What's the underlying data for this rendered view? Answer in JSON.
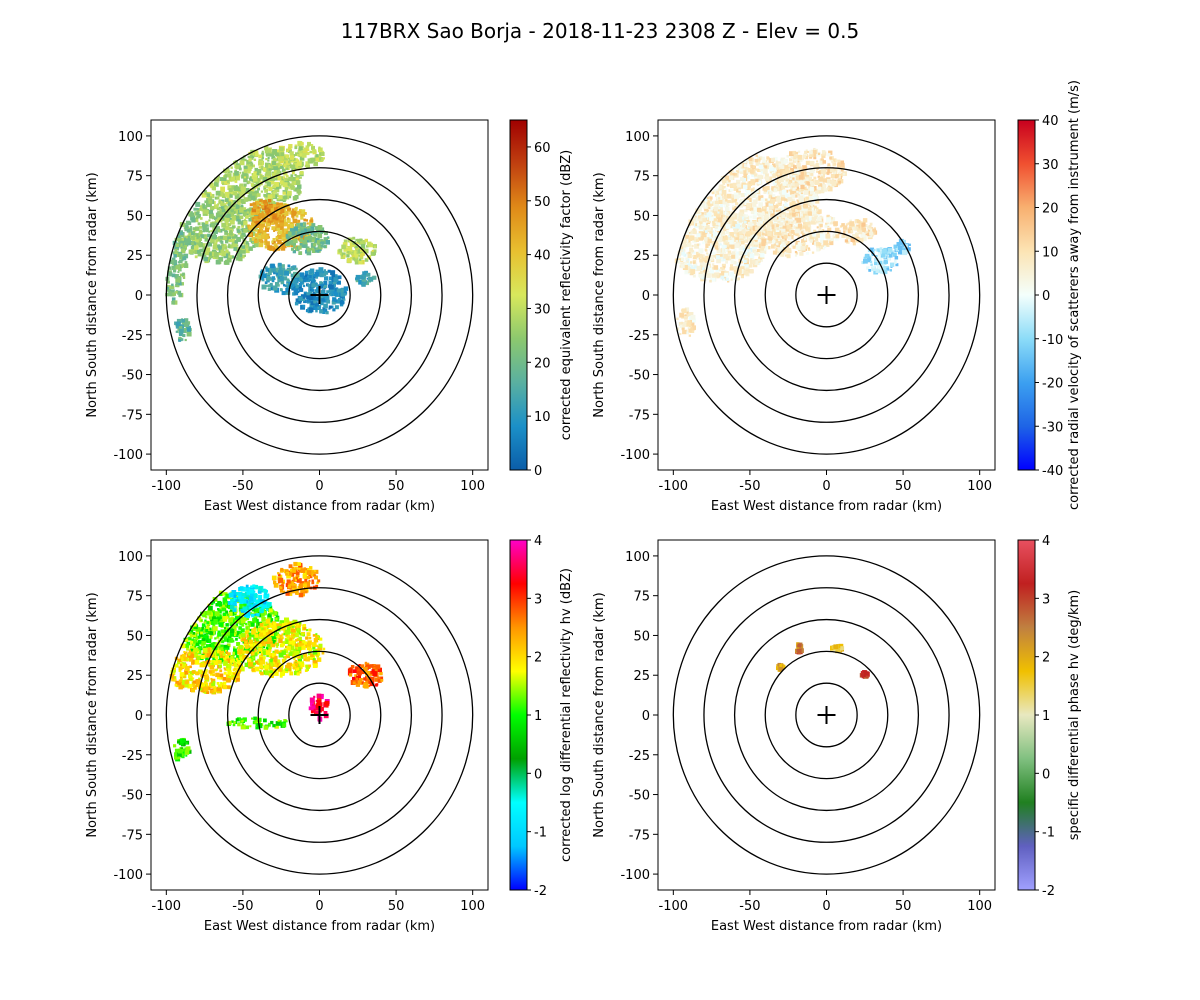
{
  "figure": {
    "title": "117BRX Sao Borja - 2018-11-23 2308 Z -  Elev = 0.5"
  },
  "chart_data": [
    {
      "type": "heatmap",
      "name": "reflectivity",
      "xlabel": "East West distance from radar (km)",
      "ylabel": "North South distance from radar (km)",
      "xlim": [
        -110,
        110
      ],
      "ylim": [
        -110,
        110
      ],
      "xticks": [
        -100,
        -50,
        0,
        50,
        100
      ],
      "yticks": [
        -100,
        -75,
        -50,
        -25,
        0,
        25,
        50,
        75,
        100
      ],
      "range_rings_km": [
        20,
        40,
        60,
        80,
        100
      ],
      "colorbar": {
        "label": "corrected equivalent reflectivity factor (dBZ)",
        "min": 0,
        "max": 65,
        "ticks": [
          0,
          10,
          20,
          30,
          40,
          50,
          60
        ],
        "colors": [
          "#0b5da8",
          "#1b90c8",
          "#5ab0a0",
          "#8cc86e",
          "#d8e85c",
          "#e8c030",
          "#e08a18",
          "#c04010",
          "#a00000"
        ]
      },
      "echoes": [
        {
          "x": -45,
          "y": 72,
          "rx": 35,
          "ry": 22,
          "value": 28
        },
        {
          "x": -65,
          "y": 40,
          "rx": 28,
          "ry": 20,
          "value": 25
        },
        {
          "x": -25,
          "y": 42,
          "rx": 22,
          "ry": 14,
          "value": 42
        },
        {
          "x": -35,
          "y": 52,
          "rx": 12,
          "ry": 8,
          "value": 46
        },
        {
          "x": -12,
          "y": 88,
          "rx": 16,
          "ry": 8,
          "value": 30
        },
        {
          "x": -8,
          "y": 35,
          "rx": 14,
          "ry": 10,
          "value": 20
        },
        {
          "x": 25,
          "y": 28,
          "rx": 12,
          "ry": 8,
          "value": 30
        },
        {
          "x": 0,
          "y": 2,
          "rx": 18,
          "ry": 14,
          "value": 8
        },
        {
          "x": -25,
          "y": 10,
          "rx": 14,
          "ry": 10,
          "value": 12
        },
        {
          "x": -90,
          "y": -22,
          "rx": 6,
          "ry": 7,
          "value": 18
        },
        {
          "x": -95,
          "y": 20,
          "rx": 8,
          "ry": 25,
          "value": 22
        },
        {
          "x": 30,
          "y": 10,
          "rx": 6,
          "ry": 4,
          "value": 14
        }
      ]
    },
    {
      "type": "heatmap",
      "name": "velocity",
      "xlabel": "East West distance from radar (km)",
      "ylabel": "North South distance from radar (km)",
      "xlim": [
        -110,
        110
      ],
      "ylim": [
        -110,
        110
      ],
      "xticks": [
        -100,
        -50,
        0,
        50,
        100
      ],
      "yticks": [
        -100,
        -75,
        -50,
        -25,
        0,
        25,
        50,
        75,
        100
      ],
      "range_rings_km": [
        20,
        40,
        60,
        80,
        100
      ],
      "colorbar": {
        "label": "corrected radial velocity of scatterers away from instrument (m/s)",
        "min": -40,
        "max": 40,
        "ticks": [
          -40,
          -30,
          -20,
          -10,
          0,
          10,
          20,
          30,
          40
        ],
        "colors": [
          "#0000ff",
          "#1e64e6",
          "#3ca0f0",
          "#8cdcf8",
          "#f4fffc",
          "#fce4b4",
          "#f8b070",
          "#f05030",
          "#c8001e"
        ]
      },
      "echoes": [
        {
          "x": -50,
          "y": 60,
          "rx": 45,
          "ry": 28,
          "value": 6
        },
        {
          "x": -70,
          "y": 30,
          "rx": 30,
          "ry": 22,
          "value": 5
        },
        {
          "x": -20,
          "y": 40,
          "rx": 28,
          "ry": 16,
          "value": 7
        },
        {
          "x": -10,
          "y": 78,
          "rx": 22,
          "ry": 14,
          "value": 8
        },
        {
          "x": 20,
          "y": 40,
          "rx": 12,
          "ry": 8,
          "value": 9
        },
        {
          "x": 35,
          "y": 22,
          "rx": 12,
          "ry": 8,
          "value": -8
        },
        {
          "x": -92,
          "y": -18,
          "rx": 6,
          "ry": 9,
          "value": 6
        },
        {
          "x": 50,
          "y": 30,
          "rx": 5,
          "ry": 4,
          "value": -10
        }
      ]
    },
    {
      "type": "heatmap",
      "name": "differential_reflectivity",
      "xlabel": "East West distance from radar (km)",
      "ylabel": "North South distance from radar (km)",
      "xlim": [
        -110,
        110
      ],
      "ylim": [
        -110,
        110
      ],
      "xticks": [
        -100,
        -50,
        0,
        50,
        100
      ],
      "yticks": [
        -100,
        -75,
        -50,
        -25,
        0,
        25,
        50,
        75,
        100
      ],
      "range_rings_km": [
        20,
        40,
        60,
        80,
        100
      ],
      "colorbar": {
        "label": "corrected log differential reflectivity hv (dBZ)",
        "min": -2,
        "max": 4,
        "ticks": [
          -2,
          -1,
          0,
          1,
          2,
          3,
          4
        ],
        "colors": [
          "#0000ff",
          "#00c8ff",
          "#00ffff",
          "#00a000",
          "#00ff00",
          "#ffff00",
          "#ff9600",
          "#ff0000",
          "#ff00c8"
        ]
      },
      "echoes": [
        {
          "x": -60,
          "y": 55,
          "rx": 35,
          "ry": 22,
          "value": 1.2
        },
        {
          "x": -75,
          "y": 28,
          "rx": 25,
          "ry": 14,
          "value": 2.0
        },
        {
          "x": -25,
          "y": 42,
          "rx": 28,
          "ry": 18,
          "value": 1.8
        },
        {
          "x": -15,
          "y": 85,
          "rx": 15,
          "ry": 10,
          "value": 2.4
        },
        {
          "x": -45,
          "y": 72,
          "rx": 14,
          "ry": 10,
          "value": -0.8
        },
        {
          "x": 30,
          "y": 25,
          "rx": 12,
          "ry": 8,
          "value": 2.8
        },
        {
          "x": 0,
          "y": 5,
          "rx": 6,
          "ry": 8,
          "value": 3.5
        },
        {
          "x": -90,
          "y": -22,
          "rx": 6,
          "ry": 7,
          "value": 1.0
        },
        {
          "x": -40,
          "y": -5,
          "rx": 20,
          "ry": 3,
          "value": 1.1
        }
      ]
    },
    {
      "type": "heatmap",
      "name": "specific_differential_phase",
      "xlabel": "East West distance from radar (km)",
      "ylabel": "North South distance from radar (km)",
      "xlim": [
        -110,
        110
      ],
      "ylim": [
        -110,
        110
      ],
      "xticks": [
        -100,
        -50,
        0,
        50,
        100
      ],
      "yticks": [
        -100,
        -75,
        -50,
        -25,
        0,
        25,
        50,
        75,
        100
      ],
      "range_rings_km": [
        20,
        40,
        60,
        80,
        100
      ],
      "colorbar": {
        "label": "specific differential phase hv (deg/km)",
        "min": -2,
        "max": 4,
        "ticks": [
          -2,
          -1,
          0,
          1,
          2,
          3,
          4
        ],
        "colors": [
          "#a0a0ff",
          "#6060c0",
          "#208020",
          "#80c080",
          "#e8e8c0",
          "#f0c000",
          "#c08040",
          "#c02020",
          "#e85060"
        ]
      },
      "echoes": [
        {
          "x": -18,
          "y": 42,
          "rx": 2,
          "ry": 3,
          "value": 2.5
        },
        {
          "x": 7,
          "y": 42,
          "rx": 4,
          "ry": 2,
          "value": 1.5
        },
        {
          "x": 25,
          "y": 25,
          "rx": 2,
          "ry": 2,
          "value": 3.0
        },
        {
          "x": -30,
          "y": 30,
          "rx": 2,
          "ry": 2,
          "value": 2.0
        }
      ]
    }
  ]
}
